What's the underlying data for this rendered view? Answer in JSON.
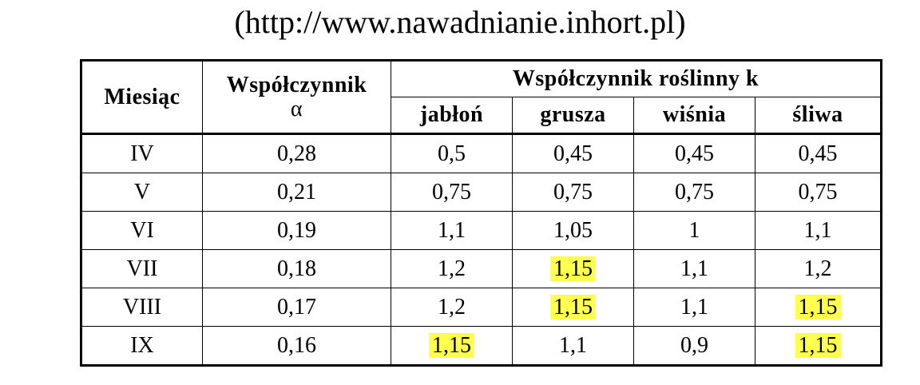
{
  "source_text": "(http://www.nawadnianie.inhort.pl)",
  "table": {
    "header": {
      "month": "Miesiąc",
      "alpha_line1": "Współczynnik",
      "alpha_line2": "α",
      "crop_group": "Współczynnik roślinny k",
      "crops": [
        "jabłoń",
        "grusza",
        "wiśnia",
        "śliwa"
      ]
    },
    "rows": [
      {
        "month": "IV",
        "alpha": "0,28",
        "k": [
          "0,5",
          "0,45",
          "0,45",
          "0,45"
        ],
        "highlight": [
          false,
          false,
          false,
          false
        ]
      },
      {
        "month": "V",
        "alpha": "0,21",
        "k": [
          "0,75",
          "0,75",
          "0,75",
          "0,75"
        ],
        "highlight": [
          false,
          false,
          false,
          false
        ]
      },
      {
        "month": "VI",
        "alpha": "0,19",
        "k": [
          "1,1",
          "1,05",
          "1",
          "1,1"
        ],
        "highlight": [
          false,
          false,
          false,
          false
        ]
      },
      {
        "month": "VII",
        "alpha": "0,18",
        "k": [
          "1,2",
          "1,15",
          "1,1",
          "1,2"
        ],
        "highlight": [
          false,
          true,
          false,
          false
        ]
      },
      {
        "month": "VIII",
        "alpha": "0,17",
        "k": [
          "1,2",
          "1,15",
          "1,1",
          "1,15"
        ],
        "highlight": [
          false,
          true,
          false,
          true
        ]
      },
      {
        "month": "IX",
        "alpha": "0,16",
        "k": [
          "1,15",
          "1,1",
          "0,9",
          "1,15"
        ],
        "highlight": [
          true,
          false,
          false,
          true
        ]
      }
    ]
  },
  "colors": {
    "highlight": "#ffff4d",
    "border": "#000000"
  }
}
